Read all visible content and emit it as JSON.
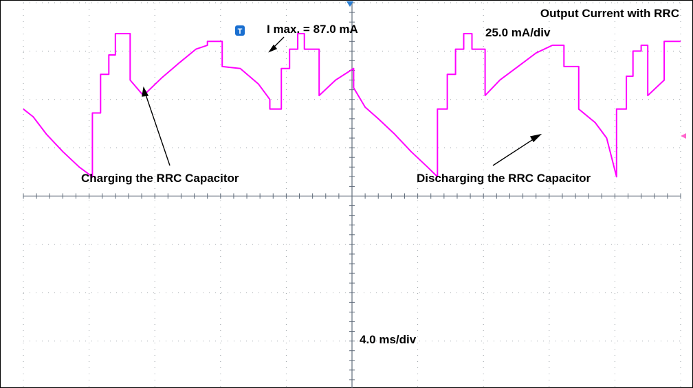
{
  "chart_data": {
    "type": "line",
    "title": "Output Current with RRC",
    "vertical_scale": "25.0 mA/div",
    "horizontal_scale": "4.0 ms/div",
    "grid": true,
    "grid_divisions": {
      "x": 10,
      "y": 8
    },
    "y_unit": "mA",
    "x_unit": "ms",
    "xlim": [
      -20,
      20
    ],
    "ylim": [
      -100,
      100
    ],
    "trigger_marker": "T",
    "trace_color": "#ff00ff",
    "series": [
      {
        "name": "",
        "x": [
          -20,
          -19.4,
          -18.6,
          -17.6,
          -16.6,
          -15.8,
          -15.8,
          -15.3,
          -15.3,
          -14.8,
          -14.8,
          -14.4,
          -14.4,
          -13.5,
          -13.5,
          -12.7,
          -11.6,
          -10.5,
          -9.5,
          -8.8,
          -8.8,
          -7.9,
          -7.9,
          -6.8,
          -5.7,
          -5.0,
          -5.0,
          -4.3,
          -4.3,
          -3.8,
          -3.8,
          -3.3,
          -3.3,
          -2.9,
          -2.9,
          -2.0,
          -2.0,
          -1.0,
          0.1,
          0.1,
          0.8,
          1.6,
          2.6,
          3.6,
          4.6,
          5.2,
          5.2,
          5.8,
          5.8,
          6.3,
          6.3,
          6.8,
          6.8,
          7.3,
          7.3,
          8.1,
          8.1,
          9.0,
          10.1,
          11.2,
          12.2,
          12.9,
          12.9,
          13.8,
          13.8,
          14.8,
          15.5,
          16.1,
          16.1,
          16.7,
          16.7,
          17.1,
          17.1,
          17.6,
          17.6,
          18.0,
          18.0,
          19.0,
          19.0,
          20.0
        ],
        "values": [
          45,
          41,
          32,
          23,
          15,
          10,
          43,
          43,
          63,
          63,
          73,
          73,
          84,
          84,
          60,
          52,
          61,
          69,
          76,
          78,
          80,
          80,
          67,
          66,
          58,
          50,
          45,
          45,
          66,
          66,
          76,
          76,
          84,
          84,
          76,
          76,
          52,
          60,
          66,
          56,
          46,
          40,
          32,
          23,
          15,
          10,
          45,
          45,
          63,
          63,
          76,
          76,
          84,
          84,
          76,
          76,
          52,
          60,
          67,
          74,
          78,
          78,
          67,
          67,
          45,
          38,
          30,
          10,
          45,
          45,
          62,
          62,
          75,
          75,
          78,
          78,
          52,
          60,
          80,
          80
        ]
      }
    ],
    "annotations": [
      {
        "text": "I max. = 87.0 mA",
        "x": 0.0,
        "y": 87.0
      },
      {
        "text": "Charging the RRC Capacitor",
        "x": -10.0,
        "y": 72.0
      },
      {
        "text": "Discharging the RRC Capacitor",
        "x": 10.0,
        "y": 38.0
      }
    ]
  }
}
